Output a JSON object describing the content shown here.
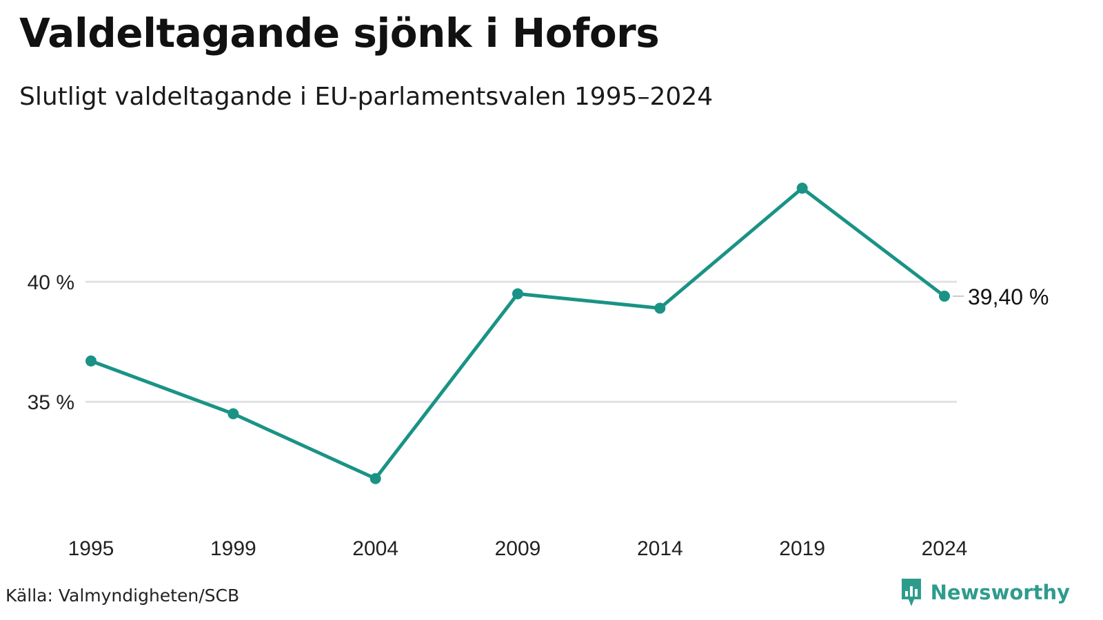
{
  "chart_data": {
    "type": "line",
    "title": "Valdeltagande sjönk i Hofors",
    "subtitle": "Slutligt valdeltagande i EU-parlamentsvalen 1995–2024",
    "x": [
      "1995",
      "1999",
      "2004",
      "2009",
      "2014",
      "2019",
      "2024"
    ],
    "series": [
      {
        "values": [
          36.7,
          34.5,
          31.8,
          39.5,
          38.9,
          43.9,
          39.4
        ]
      }
    ],
    "y_ticks": [
      35,
      40
    ],
    "y_tick_labels": [
      "35 %",
      "40 %"
    ],
    "ylim": [
      30.5,
      46
    ],
    "end_label": "39,40 %",
    "grid": "horizontal",
    "xlabel": "",
    "ylabel": "",
    "line_color": "#1a9385",
    "grid_color": "#e1e1e6"
  },
  "footer": {
    "source": "Källa: Valmyndigheten/SCB",
    "brand": "Newsworthy",
    "brand_color": "#2e9c8c",
    "brand_icon": "bar-chart-badge-icon"
  }
}
